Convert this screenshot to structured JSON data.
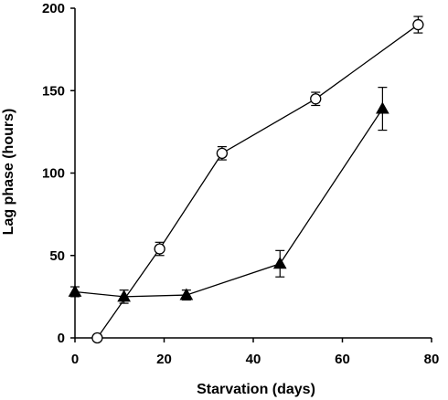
{
  "chart_data": {
    "type": "scatter",
    "title": "",
    "xlabel": "Starvation (days)",
    "ylabel": "Lag phase (hours)",
    "xlim": [
      0,
      80
    ],
    "ylim": [
      0,
      200
    ],
    "xticks": [
      "0",
      "20",
      "40",
      "60",
      "80"
    ],
    "yticks": [
      "0",
      "50",
      "100",
      "150",
      "200"
    ],
    "grid": false,
    "legend": "none",
    "series": [
      {
        "marker": "open-circle",
        "color": "#000000",
        "points": [
          {
            "x": 5,
            "y": 0,
            "err": 0
          },
          {
            "x": 19,
            "y": 54,
            "err": 4
          },
          {
            "x": 33,
            "y": 112,
            "err": 4
          },
          {
            "x": 54,
            "y": 145,
            "err": 4
          },
          {
            "x": 77,
            "y": 190,
            "err": 5
          }
        ]
      },
      {
        "marker": "filled-triangle",
        "color": "#000000",
        "points": [
          {
            "x": 0,
            "y": 28,
            "err": 3
          },
          {
            "x": 11,
            "y": 25,
            "err": 4
          },
          {
            "x": 25,
            "y": 26,
            "err": 3
          },
          {
            "x": 46,
            "y": 45,
            "err": 8
          },
          {
            "x": 69,
            "y": 139,
            "err": 13
          }
        ]
      }
    ]
  }
}
